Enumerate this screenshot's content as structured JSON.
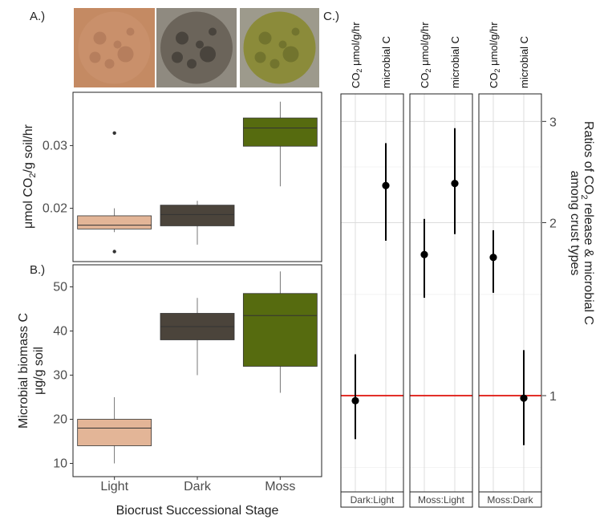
{
  "panel_labels": {
    "a": "A.)",
    "b": "B.)",
    "c": "C.)"
  },
  "photos": [
    {
      "name": "light-crust-photo",
      "bg": "#c48a63",
      "center": "#c9906b",
      "spot": "#a56f52"
    },
    {
      "name": "dark-crust-photo",
      "bg": "#8f8a80",
      "center": "#6b645a",
      "spot": "#2d2a26"
    },
    {
      "name": "moss-crust-photo",
      "bg": "#9d9a8c",
      "center": "#8b8b3a",
      "spot": "#5f6324"
    }
  ],
  "chart_data": [
    {
      "type": "box",
      "panel": "A",
      "ylabel_html": "μmol CO2/g soil/hr",
      "ylabel_parts": {
        "unit": "μmol CO",
        "sub": "2",
        "rest": "/g soil/hr"
      },
      "ylim": [
        0.0115,
        0.0385
      ],
      "yticks": [
        0.02,
        0.03
      ],
      "ytick_labels": [
        "0.02",
        "0.03"
      ],
      "categories": [
        "Light",
        "Dark",
        "Moss"
      ],
      "colors": [
        "#e3b597",
        "#4b443b",
        "#566b0f"
      ],
      "boxes": [
        {
          "whisker_low": 0.0162,
          "q1": 0.0167,
          "median": 0.0173,
          "q3": 0.0188,
          "whisker_high": 0.02,
          "outliers": [
            0.032,
            0.0131
          ]
        },
        {
          "whisker_low": 0.0142,
          "q1": 0.0172,
          "median": 0.019,
          "q3": 0.0205,
          "whisker_high": 0.0212,
          "outliers": []
        },
        {
          "whisker_low": 0.0235,
          "q1": 0.0299,
          "median": 0.0328,
          "q3": 0.0344,
          "whisker_high": 0.037,
          "outliers": []
        }
      ]
    },
    {
      "type": "box",
      "panel": "B",
      "ylabel_line1": "Microbial biomass C",
      "ylabel_line2": "μg/g soil",
      "xlabel": "Biocrust Successional Stage",
      "ylim": [
        7,
        55
      ],
      "yticks": [
        10,
        20,
        30,
        40,
        50
      ],
      "ytick_labels": [
        "10",
        "20",
        "30",
        "40",
        "50"
      ],
      "categories": [
        "Light",
        "Dark",
        "Moss"
      ],
      "colors": [
        "#e3b597",
        "#4b443b",
        "#566b0f"
      ],
      "boxes": [
        {
          "whisker_low": 10,
          "q1": 14,
          "median": 18,
          "q3": 20,
          "whisker_high": 25,
          "outliers": []
        },
        {
          "whisker_low": 30,
          "q1": 38,
          "median": 41,
          "q3": 44,
          "whisker_high": 47.5,
          "outliers": []
        },
        {
          "whisker_low": 26,
          "q1": 32,
          "median": 43.5,
          "q3": 48.5,
          "whisker_high": 53.5,
          "outliers": []
        }
      ]
    },
    {
      "type": "scatter",
      "panel": "C",
      "scale": "log",
      "ylim": [
        0.68,
        3.35
      ],
      "yticks": [
        1,
        2,
        3
      ],
      "ytick_labels": [
        "1",
        "2",
        "3"
      ],
      "reference_line": 1,
      "ylabel_line1_parts": {
        "pre": "Ratios of CO",
        "sub": "2",
        "post": " release & microbial C"
      },
      "ylabel_line2": "among crust types",
      "column_label_co2_parts": {
        "pre": "CO",
        "sub": "2",
        "post": " μmol/g/hr"
      },
      "column_label_mbc": "microbial C",
      "facets": [
        {
          "label": "Dark:Light",
          "points": [
            {
              "metric": "CO2",
              "value": 0.98,
              "low": 0.84,
              "high": 1.18
            },
            {
              "metric": "microbial C",
              "value": 2.32,
              "low": 1.86,
              "high": 2.75
            }
          ]
        },
        {
          "label": "Moss:Light",
          "points": [
            {
              "metric": "CO2",
              "value": 1.76,
              "low": 1.48,
              "high": 2.03
            },
            {
              "metric": "microbial C",
              "value": 2.34,
              "low": 1.91,
              "high": 2.92
            }
          ]
        },
        {
          "label": "Moss:Dark",
          "points": [
            {
              "metric": "CO2",
              "value": 1.74,
              "low": 1.51,
              "high": 1.94
            },
            {
              "metric": "microbial C",
              "value": 0.99,
              "low": 0.82,
              "high": 1.2
            }
          ]
        }
      ]
    }
  ]
}
